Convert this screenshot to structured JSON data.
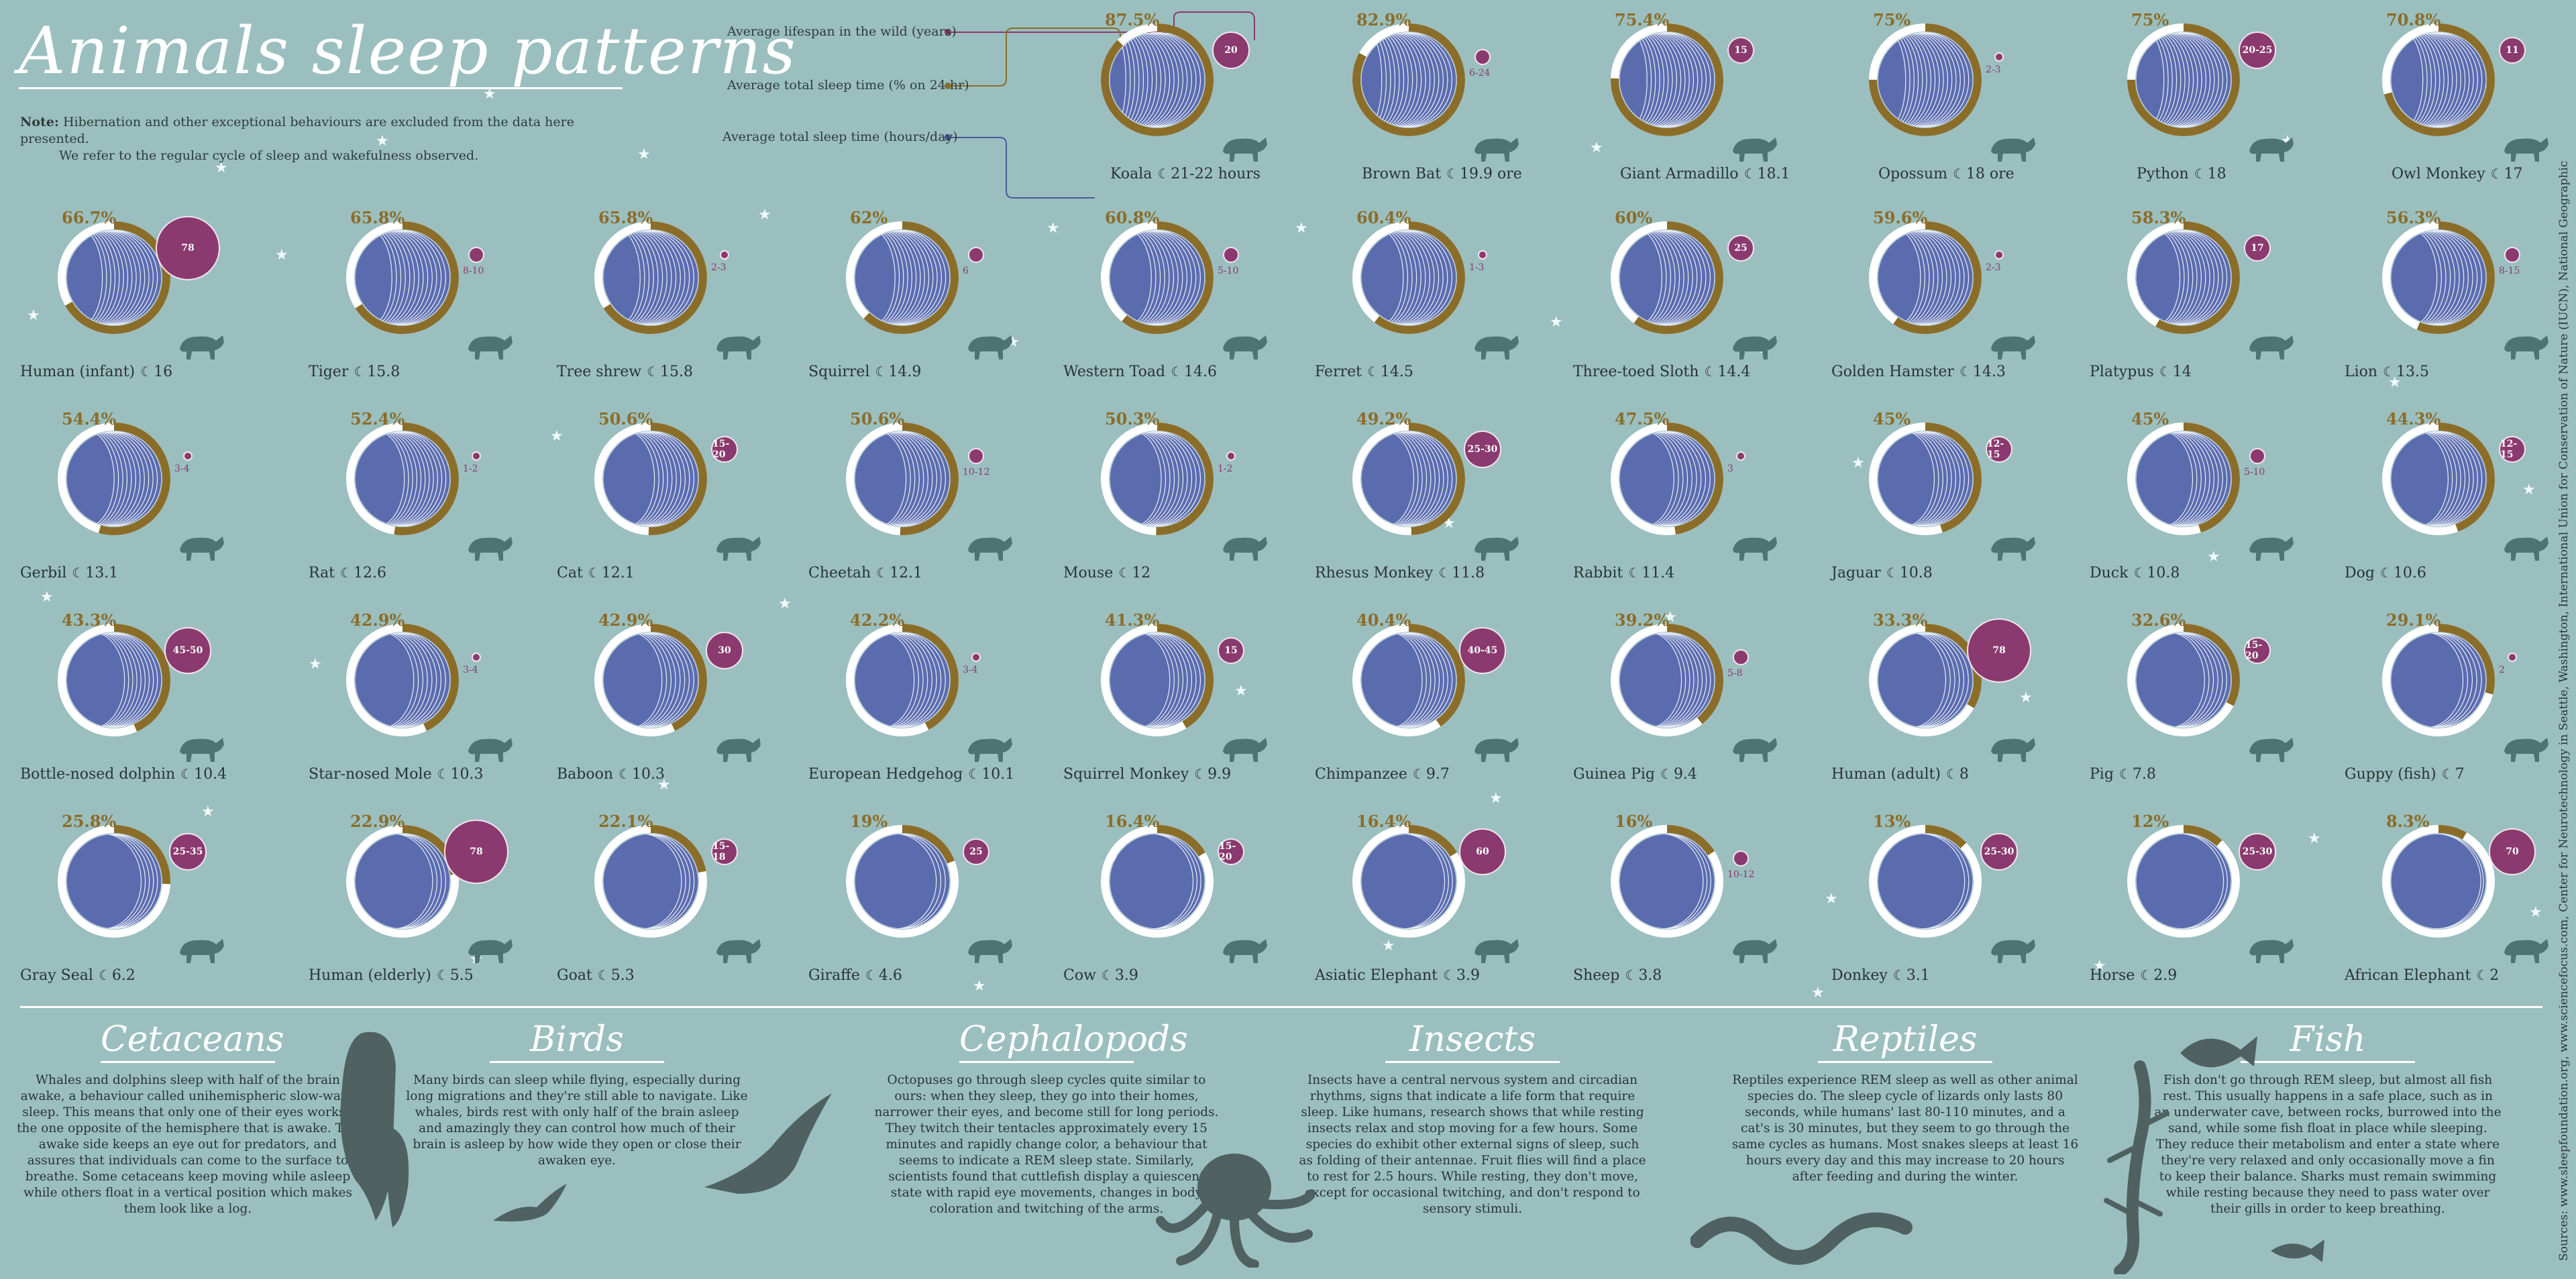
{
  "title": "Animals sleep patterns",
  "note": {
    "label": "Note:",
    "line1": "Hibernation and other exceptional behaviours are excluded from the data here presented.",
    "line2": "We refer to the regular cycle of sleep and wakefulness observed."
  },
  "legend": {
    "lifespan": "Average lifespan in the wild (years)",
    "percent": "Average total sleep time (% on 24 hr)",
    "hours": "Average total sleep time (hours/day)"
  },
  "colors": {
    "background": "#9bbfbf",
    "sleep_blue": "#5b6cae",
    "awake": "#c4e6e2",
    "ring_gold": "#8b6d2a",
    "ring_white": "#ffffff",
    "lifespan_purple": "#8a3a6e"
  },
  "animals": [
    {
      "name": "Koala",
      "percent": "87.5%",
      "hours": "21-22 hours",
      "lifespan": "20",
      "frac": 0.875,
      "size": 3,
      "icon": "koala-silhouette"
    },
    {
      "name": "Brown Bat",
      "percent": "82.9%",
      "hours": "19.9 ore",
      "lifespan": "6-24",
      "frac": 0.829,
      "size": 1,
      "icon": "bat-silhouette"
    },
    {
      "name": "Giant Armadillo",
      "percent": "75.4%",
      "hours": "18.1",
      "lifespan": "15",
      "frac": 0.754,
      "size": 2,
      "icon": "armadillo-silhouette"
    },
    {
      "name": "Opossum",
      "percent": "75%",
      "hours": "18 ore",
      "lifespan": "2-3",
      "frac": 0.75,
      "size": 0,
      "icon": "opossum-silhouette"
    },
    {
      "name": "Python",
      "percent": "75%",
      "hours": "18",
      "lifespan": "20-25",
      "frac": 0.75,
      "size": 3,
      "icon": "snake-silhouette"
    },
    {
      "name": "Owl Monkey",
      "percent": "70.8%",
      "hours": "17",
      "lifespan": "11",
      "frac": 0.708,
      "size": 2,
      "icon": "monkey-silhouette"
    },
    {
      "name": "Human (infant)",
      "percent": "66.7%",
      "hours": "16",
      "lifespan": "78",
      "frac": 0.667,
      "size": 5,
      "icon": "baby-silhouette"
    },
    {
      "name": "Tiger",
      "percent": "65.8%",
      "hours": "15.8",
      "lifespan": "8-10",
      "frac": 0.658,
      "size": 1,
      "icon": "tiger-silhouette"
    },
    {
      "name": "Tree shrew",
      "percent": "65.8%",
      "hours": "15.8",
      "lifespan": "2-3",
      "frac": 0.658,
      "size": 0,
      "icon": "shrew-silhouette"
    },
    {
      "name": "Squirrel",
      "percent": "62%",
      "hours": "14.9",
      "lifespan": "6",
      "frac": 0.62,
      "size": 1,
      "icon": "squirrel-silhouette"
    },
    {
      "name": "Western Toad",
      "percent": "60.8%",
      "hours": "14.6",
      "lifespan": "5-10",
      "frac": 0.608,
      "size": 1,
      "icon": "toad-silhouette"
    },
    {
      "name": "Ferret",
      "percent": "60.4%",
      "hours": "14.5",
      "lifespan": "1-3",
      "frac": 0.604,
      "size": 0,
      "icon": "ferret-silhouette"
    },
    {
      "name": "Three-toed Sloth",
      "percent": "60%",
      "hours": "14.4",
      "lifespan": "25",
      "frac": 0.6,
      "size": 2,
      "icon": "sloth-silhouette"
    },
    {
      "name": "Golden Hamster",
      "percent": "59.6%",
      "hours": "14.3",
      "lifespan": "2-3",
      "frac": 0.596,
      "size": 0,
      "icon": "hamster-silhouette"
    },
    {
      "name": "Platypus",
      "percent": "58.3%",
      "hours": "14",
      "lifespan": "17",
      "frac": 0.583,
      "size": 2,
      "icon": "platypus-silhouette"
    },
    {
      "name": "Lion",
      "percent": "56.3%",
      "hours": "13.5",
      "lifespan": "8-15",
      "frac": 0.563,
      "size": 1,
      "icon": "lion-silhouette"
    },
    {
      "name": "Gerbil",
      "percent": "54.4%",
      "hours": "13.1",
      "lifespan": "3-4",
      "frac": 0.544,
      "size": 0,
      "icon": "gerbil-silhouette"
    },
    {
      "name": "Rat",
      "percent": "52.4%",
      "hours": "12.6",
      "lifespan": "1-2",
      "frac": 0.524,
      "size": 0,
      "icon": "rat-silhouette"
    },
    {
      "name": "Cat",
      "percent": "50.6%",
      "hours": "12.1",
      "lifespan": "15-20",
      "frac": 0.506,
      "size": 2,
      "icon": "cat-silhouette"
    },
    {
      "name": "Cheetah",
      "percent": "50.6%",
      "hours": "12.1",
      "lifespan": "10-12",
      "frac": 0.506,
      "size": 1,
      "icon": "cheetah-silhouette"
    },
    {
      "name": "Mouse",
      "percent": "50.3%",
      "hours": "12",
      "lifespan": "1-2",
      "frac": 0.503,
      "size": 0,
      "icon": "mouse-silhouette"
    },
    {
      "name": "Rhesus Monkey",
      "percent": "49.2%",
      "hours": "11.8",
      "lifespan": "25-30",
      "frac": 0.492,
      "size": 3,
      "icon": "monkey-silhouette"
    },
    {
      "name": "Rabbit",
      "percent": "47.5%",
      "hours": "11.4",
      "lifespan": "3",
      "frac": 0.475,
      "size": 0,
      "icon": "rabbit-silhouette"
    },
    {
      "name": "Jaguar",
      "percent": "45%",
      "hours": "10.8",
      "lifespan": "12-15",
      "frac": 0.45,
      "size": 2,
      "icon": "jaguar-silhouette"
    },
    {
      "name": "Duck",
      "percent": "45%",
      "hours": "10.8",
      "lifespan": "5-10",
      "frac": 0.45,
      "size": 1,
      "icon": "duck-silhouette"
    },
    {
      "name": "Dog",
      "percent": "44.3%",
      "hours": "10.6",
      "lifespan": "12-15",
      "frac": 0.443,
      "size": 2,
      "icon": "dog-silhouette"
    },
    {
      "name": "Bottle-nosed dolphin",
      "percent": "43.3%",
      "hours": "10.4",
      "lifespan": "45-50",
      "frac": 0.433,
      "size": 4,
      "icon": "dolphin-silhouette"
    },
    {
      "name": "Star-nosed Mole",
      "percent": "42.9%",
      "hours": "10.3",
      "lifespan": "3-4",
      "frac": 0.429,
      "size": 0,
      "icon": "mole-silhouette"
    },
    {
      "name": "Baboon",
      "percent": "42.9%",
      "hours": "10.3",
      "lifespan": "30",
      "frac": 0.429,
      "size": 3,
      "icon": "baboon-silhouette"
    },
    {
      "name": "European Hedgehog",
      "percent": "42.2%",
      "hours": "10.1",
      "lifespan": "3-4",
      "frac": 0.422,
      "size": 0,
      "icon": "hedgehog-silhouette"
    },
    {
      "name": "Squirrel Monkey",
      "percent": "41.3%",
      "hours": "9.9",
      "lifespan": "15",
      "frac": 0.413,
      "size": 2,
      "icon": "monkey-silhouette"
    },
    {
      "name": "Chimpanzee",
      "percent": "40.4%",
      "hours": "9.7",
      "lifespan": "40-45",
      "frac": 0.404,
      "size": 4,
      "icon": "chimpanzee-silhouette"
    },
    {
      "name": "Guinea Pig",
      "percent": "39.2%",
      "hours": "9.4",
      "lifespan": "5-8",
      "frac": 0.392,
      "size": 1,
      "icon": "guinea-pig-silhouette"
    },
    {
      "name": "Human (adult)",
      "percent": "33.3%",
      "hours": "8",
      "lifespan": "78",
      "frac": 0.333,
      "size": 5,
      "icon": "human-silhouette"
    },
    {
      "name": "Pig",
      "percent": "32.6%",
      "hours": "7.8",
      "lifespan": "15-20",
      "frac": 0.326,
      "size": 2,
      "icon": "pig-silhouette"
    },
    {
      "name": "Guppy (fish)",
      "percent": "29.1%",
      "hours": "7",
      "lifespan": "2",
      "frac": 0.291,
      "size": 0,
      "icon": "fish-silhouette"
    },
    {
      "name": "Gray Seal",
      "percent": "25.8%",
      "hours": "6.2",
      "lifespan": "25-35",
      "frac": 0.258,
      "size": 3,
      "icon": "seal-silhouette"
    },
    {
      "name": "Human (elderly)",
      "percent": "22.9%",
      "hours": "5.5",
      "lifespan": "78",
      "frac": 0.229,
      "size": 5,
      "icon": "human-silhouette"
    },
    {
      "name": "Goat",
      "percent": "22.1%",
      "hours": "5.3",
      "lifespan": "15-18",
      "frac": 0.221,
      "size": 2,
      "icon": "goat-silhouette"
    },
    {
      "name": "Giraffe",
      "percent": "19%",
      "hours": "4.6",
      "lifespan": "25",
      "frac": 0.19,
      "size": 2,
      "icon": "giraffe-silhouette"
    },
    {
      "name": "Cow",
      "percent": "16.4%",
      "hours": "3.9",
      "lifespan": "15-20",
      "frac": 0.164,
      "size": 2,
      "icon": "cow-silhouette"
    },
    {
      "name": "Asiatic Elephant",
      "percent": "16.4%",
      "hours": "3.9",
      "lifespan": "60",
      "frac": 0.164,
      "size": 4,
      "icon": "elephant-silhouette"
    },
    {
      "name": "Sheep",
      "percent": "16%",
      "hours": "3.8",
      "lifespan": "10-12",
      "frac": 0.16,
      "size": 1,
      "icon": "sheep-silhouette"
    },
    {
      "name": "Donkey",
      "percent": "13%",
      "hours": "3.1",
      "lifespan": "25-30",
      "frac": 0.13,
      "size": 3,
      "icon": "donkey-silhouette"
    },
    {
      "name": "Horse",
      "percent": "12%",
      "hours": "2.9",
      "lifespan": "25-30",
      "frac": 0.12,
      "size": 3,
      "icon": "horse-silhouette"
    },
    {
      "name": "African Elephant",
      "percent": "8.3%",
      "hours": "2",
      "lifespan": "70",
      "frac": 0.083,
      "size": 4,
      "icon": "elephant-silhouette"
    }
  ],
  "sections": [
    {
      "title": "Cetaceans",
      "text": "Whales and dolphins sleep with half of the brain awake, a behaviour called unihemispheric slow-wave sleep. This means that only one of their eyes works - the one opposite of the hemisphere that is awake. The awake side keeps an eye out for predators, and assures that individuals can come to the surface to breathe. Some cetaceans keep moving while asleep while others float in a vertical position which makes them look like a log."
    },
    {
      "title": "Birds",
      "text": "Many birds can sleep while flying, especially during long migrations and they're still able to navigate. Like whales, birds rest with only half of the brain asleep and amazingly they can control how much of their brain is asleep by how wide they open or close their awaken eye."
    },
    {
      "title": "Cephalopods",
      "text": "Octopuses go through sleep cycles quite similar to ours: when they sleep, they go into their homes, narrower their eyes, and become still for long periods. They twitch their tentacles approximately every 15 minutes and rapidly change color, a behaviour that seems to indicate a REM sleep state. Similarly, scientists found that cuttlefish display a quiescent state with rapid eye movements, changes in body coloration and twitching of the arms."
    },
    {
      "title": "Insects",
      "text": "Insects have a central nervous system and circadian rhythms, signs that indicate a life form that require sleep. Like humans, research shows that while resting insects relax and stop moving for a few hours. Some species do exhibit other external signs of sleep, such as folding of their antennae. Fruit flies will find a place to rest for 2.5 hours. While resting, they don't move, except for occasional twitching, and don't respond to sensory stimuli."
    },
    {
      "title": "Reptiles",
      "text": "Reptiles experience REM sleep as well as other animal species do. The sleep cycle of lizards only lasts 80 seconds, while humans' last 80-110 minutes, and a cat's is 30 minutes, but they seem to go through the same cycles as humans. Most snakes sleeps at least 16 hours every day and this may increase to 20 hours after feeding and during the winter."
    },
    {
      "title": "Fish",
      "text": "Fish don't go through REM sleep, but almost all fish rest. This usually happens in a safe place, such as in an underwater cave, between rocks, burrowed into the sand, while some fish float in place while sleeping. They reduce their metabolism and enter a state where they're very relaxed and only occasionally move a fin to keep their balance. Sharks must remain swimming while resting because they need to pass water over their gills in order to keep breathing."
    }
  ],
  "sources": "Sources: www.sleepfoundation.org, www.sciencefocus.com, Center for Neurotechnology in Seattle, Washington, International Union for Conservation of Nature (IUCN), National Geographic"
}
